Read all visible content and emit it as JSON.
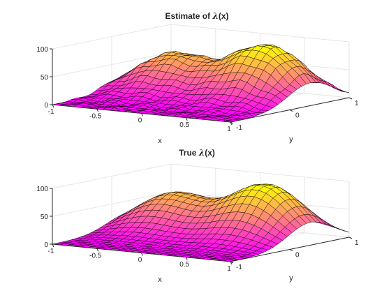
{
  "chart_data": [
    {
      "type": "surface",
      "title_prefix": "Estimate of ",
      "title_symbol": "λ",
      "title_suffix": "(x)",
      "xlabel": "x",
      "ylabel": "y",
      "zlabel": "",
      "xlim": [
        -1,
        1
      ],
      "ylim": [
        -1,
        1
      ],
      "zlim": [
        0,
        100
      ],
      "x_ticks": [
        "-1",
        "-0.5",
        "0",
        "0.5",
        "1"
      ],
      "y_ticks": [
        "-1",
        "0",
        "1"
      ],
      "z_ticks": [
        "0",
        "50",
        "100"
      ],
      "grid": true,
      "mesh_resolution": 25,
      "colormap": [
        "#ff00ff",
        "#ffff00"
      ],
      "surface_peaks": [
        {
          "x": -0.5,
          "y": 0.3,
          "z": 70
        },
        {
          "x": 0.5,
          "y": 0.35,
          "z": 100
        }
      ],
      "noisy": true
    },
    {
      "type": "surface",
      "title_prefix": "True  ",
      "title_symbol": "λ",
      "title_suffix": "(x)",
      "xlabel": "x",
      "ylabel": "y",
      "zlabel": "",
      "xlim": [
        -1,
        1
      ],
      "ylim": [
        -1,
        1
      ],
      "zlim": [
        0,
        100
      ],
      "x_ticks": [
        "-1",
        "-0.5",
        "0",
        "0.5",
        "1"
      ],
      "y_ticks": [
        "-1",
        "0",
        "1"
      ],
      "z_ticks": [
        "0",
        "50",
        "100"
      ],
      "grid": true,
      "mesh_resolution": 25,
      "colormap": [
        "#ff00ff",
        "#ffff00"
      ],
      "surface_peaks": [
        {
          "x": -0.5,
          "y": 0.3,
          "z": 70
        },
        {
          "x": 0.5,
          "y": 0.35,
          "z": 100
        }
      ],
      "noisy": false
    }
  ]
}
